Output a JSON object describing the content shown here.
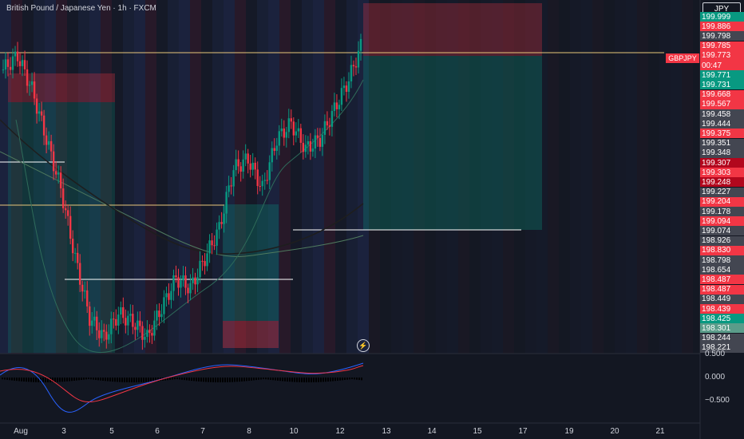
{
  "symbol_title": "British Pound / Japanese Yen · 1h · FXCM",
  "currency_button": "JPY",
  "pair_tag": "GBPJPY",
  "price_scale": [
    {
      "text": "199.999",
      "color": "#089981"
    },
    {
      "text": "199.886",
      "color": "#f23645"
    },
    {
      "text": "199.798",
      "color": "#434651"
    },
    {
      "text": "199.785",
      "color": "#f23645"
    },
    {
      "text": "199.773",
      "color": "#f23645"
    },
    {
      "text": "00:47",
      "color": "#f23645"
    },
    {
      "text": "199.771",
      "color": "#089981"
    },
    {
      "text": "199.731",
      "color": "#089981"
    },
    {
      "text": "199.668",
      "color": "#f23645"
    },
    {
      "text": "199.567",
      "color": "#f23645"
    },
    {
      "text": "199.458",
      "color": "#434651"
    },
    {
      "text": "199.444",
      "color": "#434651"
    },
    {
      "text": "199.375",
      "color": "#f23645"
    },
    {
      "text": "199.351",
      "color": "#434651"
    },
    {
      "text": "199.348",
      "color": "#434651"
    },
    {
      "text": "199.307",
      "color": "#b2071d"
    },
    {
      "text": "199.303",
      "color": "#f23645"
    },
    {
      "text": "199.248",
      "color": "#b2071d"
    },
    {
      "text": "199.227",
      "color": "#434651"
    },
    {
      "text": "199.204",
      "color": "#f23645"
    },
    {
      "text": "199.178",
      "color": "#434651"
    },
    {
      "text": "199.094",
      "color": "#f23645"
    },
    {
      "text": "199.074",
      "color": "#434651"
    },
    {
      "text": "198.926",
      "color": "#434651"
    },
    {
      "text": "198.830",
      "color": "#f23645"
    },
    {
      "text": "198.798",
      "color": "#434651"
    },
    {
      "text": "198.654",
      "color": "#434651"
    },
    {
      "text": "198.487",
      "color": "#f23645"
    },
    {
      "text": "198.487",
      "color": "#f23645"
    },
    {
      "text": "198.449",
      "color": "#434651"
    },
    {
      "text": "198.439",
      "color": "#f23645"
    },
    {
      "text": "198.425",
      "color": "#089981"
    },
    {
      "text": "198.301",
      "color": "#5b9c8a"
    },
    {
      "text": "198.244",
      "color": "#434651"
    },
    {
      "text": "198.221",
      "color": "#434651"
    }
  ],
  "macd_scale": [
    "0.500",
    "0.000",
    "−0.500"
  ],
  "time_axis": [
    "Aug",
    "3",
    "5",
    "6",
    "7",
    "8",
    "10",
    "12",
    "13",
    "14",
    "15",
    "17",
    "19",
    "20",
    "21"
  ],
  "colors": {
    "background": "#131722",
    "up_candle": "#089981",
    "down_candle": "#f23645",
    "stop_zone": "#f23645",
    "target_zone": "#089981",
    "price_line": "#e8c77a"
  },
  "chart_data": {
    "type": "candlestick",
    "symbol": "GBPJPY",
    "timeframe": "1h",
    "ylim": [
      198.22,
      200.0
    ],
    "last_price": 199.773,
    "series": [
      {
        "name": "close",
        "values": [
          199.65,
          199.72,
          199.55,
          199.3,
          199.05,
          198.7,
          198.4,
          198.3,
          198.42,
          198.38,
          198.3,
          198.45,
          198.6,
          198.55,
          198.7,
          198.85,
          199.15,
          199.2,
          199.05,
          199.3,
          199.38,
          199.25,
          199.3,
          199.45,
          199.6,
          199.8
        ]
      }
    ],
    "indicator": "MACD"
  }
}
